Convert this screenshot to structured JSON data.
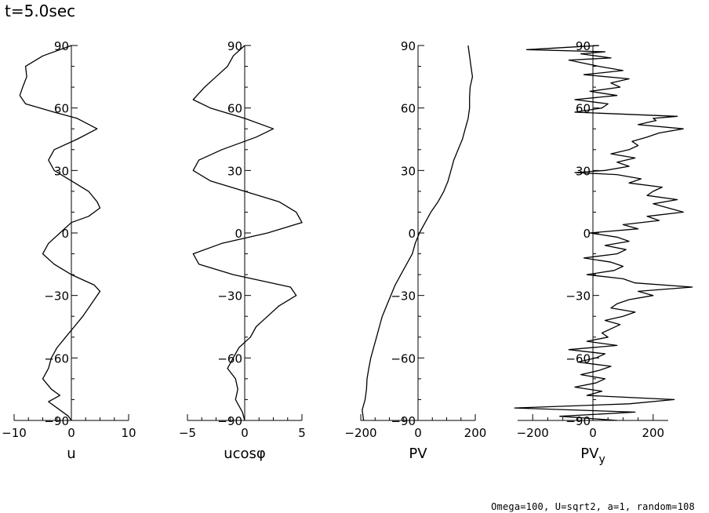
{
  "title": "t=5.0sec",
  "footer": "Omega=100, U=sqrt2, a=1, random=108",
  "chart_data": [
    {
      "type": "line",
      "xlabel": "u",
      "xlim": [
        -10,
        10
      ],
      "ylim": [
        -90,
        90
      ],
      "xticks": [
        -10,
        0,
        10
      ],
      "yticks": [
        -90,
        -60,
        -30,
        0,
        30,
        60,
        90
      ],
      "series": [
        {
          "y": [
            90,
            85,
            80,
            75,
            70,
            66,
            62,
            58,
            55,
            50,
            45,
            40,
            35,
            30,
            25,
            20,
            15,
            12,
            8,
            5,
            0,
            -5,
            -10,
            -15,
            -20,
            -25,
            -28,
            -32,
            -36,
            -40,
            -45,
            -50,
            -55,
            -60,
            -65,
            -70,
            -75,
            -78,
            -81,
            -85,
            -88,
            -90
          ],
          "x": [
            0,
            -5,
            -8,
            -7.8,
            -8.5,
            -9,
            -8,
            -3,
            1,
            4.5,
            1,
            -3,
            -4,
            -3,
            0,
            3,
            4.5,
            5,
            3,
            0,
            -2,
            -4,
            -5,
            -3,
            0,
            4,
            5,
            4,
            3,
            2,
            0.5,
            -1,
            -2.5,
            -3.5,
            -4,
            -5,
            -3.5,
            -2,
            -4,
            -2,
            -0.5,
            0
          ]
        }
      ]
    },
    {
      "type": "line",
      "xlabel": "ucosφ",
      "xlim": [
        -5,
        5
      ],
      "ylim": [
        -90,
        90
      ],
      "xticks": [
        -5,
        0,
        5
      ],
      "yticks": [
        -90,
        -60,
        -30,
        0,
        30,
        60,
        90
      ],
      "series": [
        {
          "y": [
            90,
            85,
            80,
            75,
            70,
            64,
            60,
            55,
            50,
            46,
            40,
            35,
            30,
            25,
            20,
            15,
            10,
            5,
            0,
            -5,
            -10,
            -15,
            -20,
            -26,
            -30,
            -35,
            -40,
            -45,
            -50,
            -55,
            -60,
            -65,
            -70,
            -75,
            -80,
            -83,
            -86,
            -90
          ],
          "x": [
            0,
            -1,
            -1.5,
            -2.5,
            -3.5,
            -4.5,
            -3,
            0,
            2.5,
            1,
            -2,
            -4,
            -4.5,
            -3,
            0,
            3,
            4.5,
            5,
            2,
            -2,
            -4.5,
            -4,
            -1,
            4,
            4.5,
            3,
            2,
            1,
            0.5,
            -0.5,
            -1,
            -1.5,
            -0.8,
            -0.6,
            -0.8,
            -0.5,
            -0.2,
            0
          ]
        }
      ]
    },
    {
      "type": "line",
      "xlabel": "PV",
      "xlim": [
        -200,
        200
      ],
      "ylim": [
        -90,
        90
      ],
      "xticks": [
        -200,
        0,
        200
      ],
      "yticks": [
        -90,
        -60,
        -30,
        0,
        30,
        60,
        90
      ],
      "series": [
        {
          "y": [
            -90,
            -85,
            -80,
            -75,
            -70,
            -65,
            -60,
            -55,
            -50,
            -45,
            -40,
            -35,
            -30,
            -25,
            -20,
            -15,
            -10,
            -5,
            0,
            5,
            10,
            15,
            20,
            25,
            30,
            35,
            40,
            45,
            50,
            55,
            60,
            65,
            70,
            75,
            80,
            85,
            90
          ],
          "x": [
            -190,
            -195,
            -185,
            -180,
            -178,
            -172,
            -165,
            -155,
            -145,
            -135,
            -125,
            -110,
            -95,
            -80,
            -60,
            -40,
            -20,
            -10,
            5,
            25,
            45,
            70,
            90,
            105,
            115,
            125,
            140,
            155,
            165,
            175,
            180,
            180,
            182,
            190,
            185,
            180,
            175
          ]
        }
      ]
    },
    {
      "type": "line",
      "xlabel": "PVy",
      "xlim": [
        -250,
        250
      ],
      "ylim": [
        -90,
        90
      ],
      "xticks": [
        -200,
        0,
        200
      ],
      "yticks": [
        -90,
        -60,
        -30,
        0,
        30,
        60,
        90
      ],
      "series": [
        {
          "y": [
            90,
            88,
            87,
            86,
            84,
            83,
            80,
            78,
            76,
            74,
            72,
            70,
            68,
            66,
            64,
            62,
            60,
            58,
            56,
            55,
            54,
            52,
            50,
            48,
            46,
            44,
            42,
            40,
            38,
            36,
            34,
            32,
            30,
            29,
            28,
            26,
            24,
            22,
            20,
            18,
            16,
            14,
            12,
            10,
            8,
            6,
            4,
            2,
            0,
            -2,
            -4,
            -6,
            -8,
            -10,
            -12,
            -14,
            -16,
            -18,
            -20,
            -22,
            -24,
            -26,
            -28,
            -30,
            -32,
            -34,
            -36,
            -38,
            -40,
            -42,
            -44,
            -46,
            -48,
            -50,
            -52,
            -54,
            -56,
            -58,
            -60,
            -62,
            -64,
            -66,
            -68,
            -70,
            -72,
            -74,
            -76,
            -78,
            -80,
            -82,
            -84,
            -86,
            -88,
            -90
          ],
          "x": [
            20,
            -220,
            40,
            -40,
            60,
            -80,
            20,
            100,
            -30,
            120,
            60,
            90,
            -10,
            80,
            -60,
            50,
            30,
            -60,
            280,
            200,
            210,
            150,
            300,
            220,
            180,
            130,
            150,
            120,
            60,
            140,
            80,
            120,
            40,
            -60,
            80,
            160,
            120,
            230,
            200,
            180,
            280,
            200,
            250,
            300,
            180,
            220,
            100,
            150,
            -10,
            80,
            120,
            40,
            110,
            80,
            -30,
            60,
            100,
            70,
            -20,
            100,
            140,
            330,
            150,
            200,
            120,
            80,
            60,
            140,
            100,
            40,
            90,
            60,
            30,
            50,
            -20,
            80,
            -80,
            40,
            10,
            -50,
            60,
            20,
            -40,
            40,
            10,
            -60,
            30,
            -20,
            270,
            120,
            -260,
            140,
            -110,
            80
          ]
        }
      ]
    }
  ]
}
